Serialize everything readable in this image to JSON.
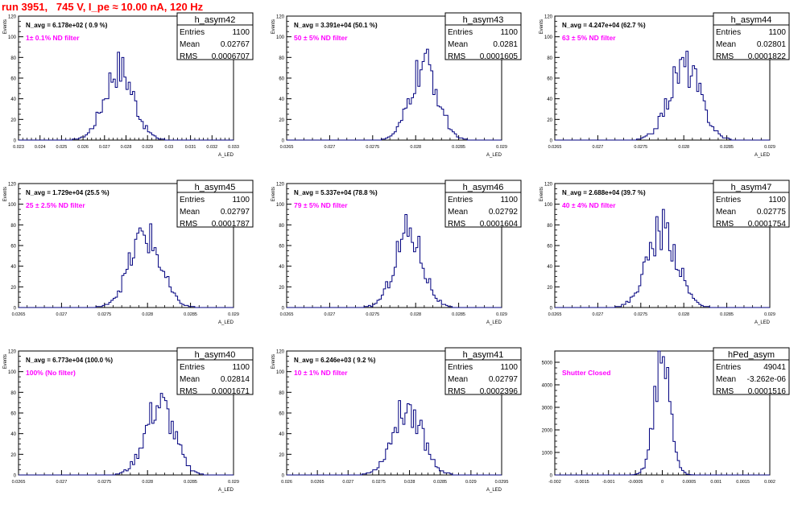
{
  "header": {
    "title": "run 3951,   745 V, I_pe ≈ 10.00 nA, 120 Hz"
  },
  "stats_labels": {
    "entries": "Entries",
    "mean": "Mean",
    "rms": "RMS"
  },
  "chart_data": [
    {
      "type": "bar",
      "name": "h_asym42",
      "navg": "N_avg = 6.178e+02 ( 0.9 %)",
      "filter": "1± 0.1% ND filter",
      "entries": "1100",
      "mean": "0.02767",
      "rms": "0.0006707",
      "ylabel": "Events",
      "xlabel": "A_LED",
      "xlim": [
        0.023,
        0.033
      ],
      "ylim": [
        0,
        120
      ],
      "xticks": [
        "0.023",
        "0.024",
        "0.025",
        "0.026",
        "0.027",
        "0.028",
        "0.029",
        "0.03",
        "0.031",
        "0.032",
        "0.033"
      ],
      "yticks": [
        "0",
        "20",
        "40",
        "60",
        "80",
        "100",
        "120"
      ],
      "mu": 0.02767,
      "sigma": 0.00067,
      "peak": 70
    },
    {
      "type": "bar",
      "name": "h_asym43",
      "navg": "N_avg = 3.391e+04 (50.1 %)",
      "filter": "50 ± 5% ND filter",
      "entries": "1100",
      "mean": "0.0281",
      "rms": "0.0001605",
      "ylabel": "Events",
      "xlabel": "A_LED",
      "xlim": [
        0.0265,
        0.029
      ],
      "ylim": [
        0,
        120
      ],
      "xticks": [
        "0.0265",
        "0.027",
        "0.0275",
        "0.028",
        "0.0285",
        "0.029"
      ],
      "yticks": [
        "0",
        "20",
        "40",
        "60",
        "80",
        "100",
        "120"
      ],
      "mu": 0.0281,
      "sigma": 0.00016,
      "peak": 72
    },
    {
      "type": "bar",
      "name": "h_asym44",
      "navg": "N_avg = 4.247e+04 (62.7 %)",
      "filter": "63 ± 5% ND filter",
      "entries": "1100",
      "mean": "0.02801",
      "rms": "0.0001822",
      "ylabel": "Events",
      "xlabel": "A_LED",
      "xlim": [
        0.0265,
        0.029
      ],
      "ylim": [
        0,
        120
      ],
      "xticks": [
        "0.0265",
        "0.027",
        "0.0275",
        "0.028",
        "0.0285",
        "0.029"
      ],
      "yticks": [
        "0",
        "20",
        "40",
        "60",
        "80",
        "100",
        "120"
      ],
      "mu": 0.02801,
      "sigma": 0.00018,
      "peak": 72
    },
    {
      "type": "bar",
      "name": "h_asym45",
      "navg": "N_avg = 1.729e+04 (25.5 %)",
      "filter": "25 ± 2.5% ND filter",
      "entries": "1100",
      "mean": "0.02797",
      "rms": "0.0001787",
      "ylabel": "Events",
      "xlabel": "A_LED",
      "xlim": [
        0.0265,
        0.029
      ],
      "ylim": [
        0,
        120
      ],
      "xticks": [
        "0.0265",
        "0.027",
        "0.0275",
        "0.028",
        "0.0285",
        "0.029"
      ],
      "yticks": [
        "0",
        "20",
        "40",
        "60",
        "80",
        "100",
        "120"
      ],
      "mu": 0.02797,
      "sigma": 0.00018,
      "peak": 70
    },
    {
      "type": "bar",
      "name": "h_asym46",
      "navg": "N_avg = 5.337e+04 (78.8 %)",
      "filter": "79 ± 5% ND filter",
      "entries": "1100",
      "mean": "0.02792",
      "rms": "0.0001604",
      "ylabel": "Events",
      "xlabel": "A_LED",
      "xlim": [
        0.0265,
        0.029
      ],
      "ylim": [
        0,
        120
      ],
      "xticks": [
        "0.0265",
        "0.027",
        "0.0275",
        "0.028",
        "0.0285",
        "0.029"
      ],
      "yticks": [
        "0",
        "20",
        "40",
        "60",
        "80",
        "100",
        "120"
      ],
      "mu": 0.02792,
      "sigma": 0.00016,
      "peak": 75
    },
    {
      "type": "bar",
      "name": "h_asym47",
      "navg": "N_avg = 2.688e+04 (39.7 %)",
      "filter": "40 ± 4% ND filter",
      "entries": "1100",
      "mean": "0.02775",
      "rms": "0.0001754",
      "ylabel": "Events",
      "xlabel": "A_LED",
      "xlim": [
        0.0265,
        0.029
      ],
      "ylim": [
        0,
        120
      ],
      "xticks": [
        "0.0265",
        "0.027",
        "0.0275",
        "0.028",
        "0.0285",
        "0.029"
      ],
      "yticks": [
        "0",
        "20",
        "40",
        "60",
        "80",
        "100",
        "120"
      ],
      "mu": 0.02775,
      "sigma": 0.000175,
      "peak": 76
    },
    {
      "type": "bar",
      "name": "h_asym40",
      "navg": "N_avg = 6.773e+04 (100.0 %)",
      "filter": "100% (No filter)",
      "entries": "1100",
      "mean": "0.02814",
      "rms": "0.0001671",
      "ylabel": "Events",
      "xlabel": "A_LED",
      "xlim": [
        0.0265,
        0.029
      ],
      "ylim": [
        0,
        120
      ],
      "xticks": [
        "0.0265",
        "0.027",
        "0.0275",
        "0.028",
        "0.0285",
        "0.029"
      ],
      "yticks": [
        "0",
        "20",
        "40",
        "60",
        "80",
        "100",
        "120"
      ],
      "mu": 0.02814,
      "sigma": 0.000167,
      "peak": 68
    },
    {
      "type": "bar",
      "name": "h_asym41",
      "navg": "N_avg = 6.246e+03 ( 9.2 %)",
      "filter": "10 ± 1% ND filter",
      "entries": "1100",
      "mean": "0.02797",
      "rms": "0.0002396",
      "ylabel": "Events",
      "xlabel": "A_LED",
      "xlim": [
        0.026,
        0.0295
      ],
      "ylim": [
        0,
        120
      ],
      "xticks": [
        "0.026",
        "0.0265",
        "0.027",
        "0.0275",
        "0.028",
        "0.0285",
        "0.029",
        "0.0295"
      ],
      "yticks": [
        "0",
        "20",
        "40",
        "60",
        "80",
        "100",
        "120"
      ],
      "mu": 0.02797,
      "sigma": 0.00024,
      "peak": 66
    },
    {
      "type": "bar",
      "name": "hPed_asym",
      "navg": "",
      "filter": "Shutter Closed",
      "entries": "49041",
      "mean": "-3.262e-06",
      "rms": "0.0001516",
      "ylabel": "",
      "xlabel": "",
      "xlim": [
        -0.002,
        0.002
      ],
      "ylim": [
        0,
        5500
      ],
      "xticks": [
        "-0.002",
        "-0.0015",
        "-0.001",
        "-0.0005",
        "0",
        "0.0005",
        "0.001",
        "0.0015",
        "0.002"
      ],
      "yticks": [
        "0",
        "1000",
        "2000",
        "3000",
        "4000",
        "5000"
      ],
      "mu": -3.262e-06,
      "sigma": 0.00015,
      "peak": 5200
    }
  ]
}
